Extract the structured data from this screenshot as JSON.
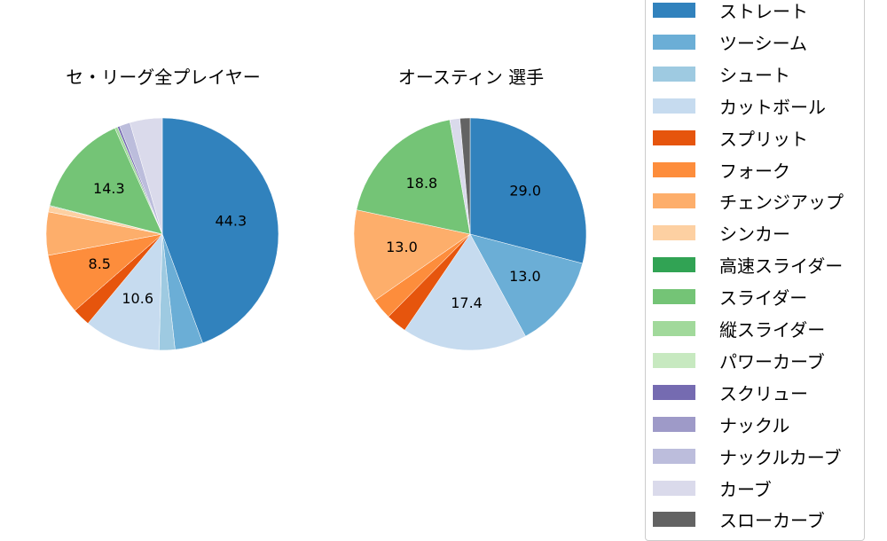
{
  "chart_data": [
    {
      "type": "pie",
      "title": "セ・リーグ全プレイヤー",
      "center": [
        183,
        264
      ],
      "radius": 131,
      "start_angle_deg": 90,
      "direction": "clockwise",
      "slices": [
        {
          "label": "ストレート",
          "value": 44.3,
          "color": "#3182bd",
          "show_label": true
        },
        {
          "label": "ツーシーム",
          "value": 3.9,
          "color": "#6baed6",
          "show_label": false
        },
        {
          "label": "シュート",
          "value": 2.2,
          "color": "#9ecae1",
          "show_label": false
        },
        {
          "label": "カットボール",
          "value": 10.6,
          "color": "#c6dbef",
          "show_label": true
        },
        {
          "label": "スプリット",
          "value": 2.5,
          "color": "#e6550d",
          "show_label": false
        },
        {
          "label": "フォーク",
          "value": 8.5,
          "color": "#fd8d3c",
          "show_label": true
        },
        {
          "label": "チェンジアップ",
          "value": 6.0,
          "color": "#fdae6b",
          "show_label": false
        },
        {
          "label": "シンカー",
          "value": 0.8,
          "color": "#fdd0a2",
          "show_label": false
        },
        {
          "label": "高速スライダー",
          "value": 0.1,
          "color": "#31a354",
          "show_label": false
        },
        {
          "label": "スライダー",
          "value": 14.3,
          "color": "#74c476",
          "show_label": true
        },
        {
          "label": "縦スライダー",
          "value": 0.4,
          "color": "#a1d99b",
          "show_label": false
        },
        {
          "label": "パワーカーブ",
          "value": 0.0,
          "color": "#c7e9c0",
          "show_label": false
        },
        {
          "label": "スクリュー",
          "value": 0.3,
          "color": "#756bb1",
          "show_label": false
        },
        {
          "label": "ナックル",
          "value": 0.0,
          "color": "#9e9ac8",
          "show_label": false
        },
        {
          "label": "ナックルカーブ",
          "value": 1.5,
          "color": "#bcbddc",
          "show_label": false
        },
        {
          "label": "カーブ",
          "value": 4.5,
          "color": "#dadaeb",
          "show_label": false
        },
        {
          "label": "スローカーブ",
          "value": 0.0,
          "color": "#636363",
          "show_label": false
        }
      ]
    },
    {
      "type": "pie",
      "title": "オースティン  選手",
      "center": [
        530,
        264
      ],
      "radius": 131,
      "start_angle_deg": 90,
      "direction": "clockwise",
      "slices": [
        {
          "label": "ストレート",
          "value": 29.0,
          "color": "#3182bd",
          "show_label": true
        },
        {
          "label": "ツーシーム",
          "value": 13.0,
          "color": "#6baed6",
          "show_label": true
        },
        {
          "label": "カットボール",
          "value": 17.4,
          "color": "#c6dbef",
          "show_label": true
        },
        {
          "label": "スプリット",
          "value": 2.9,
          "color": "#e6550d",
          "show_label": false
        },
        {
          "label": "フォーク",
          "value": 2.9,
          "color": "#fd8d3c",
          "show_label": false
        },
        {
          "label": "チェンジアップ",
          "value": 13.0,
          "color": "#fdae6b",
          "show_label": true
        },
        {
          "label": "スライダー",
          "value": 18.8,
          "color": "#74c476",
          "show_label": true
        },
        {
          "label": "カーブ",
          "value": 1.4,
          "color": "#dadaeb",
          "show_label": false
        },
        {
          "label": "スローカーブ",
          "value": 1.4,
          "color": "#636363",
          "show_label": false
        }
      ]
    }
  ],
  "titles": {
    "left": "セ・リーグ全プレイヤー",
    "right": "オースティン  選手"
  },
  "legend": {
    "items": [
      {
        "label": "ストレート",
        "color": "#3182bd"
      },
      {
        "label": "ツーシーム",
        "color": "#6baed6"
      },
      {
        "label": "シュート",
        "color": "#9ecae1"
      },
      {
        "label": "カットボール",
        "color": "#c6dbef"
      },
      {
        "label": "スプリット",
        "color": "#e6550d"
      },
      {
        "label": "フォーク",
        "color": "#fd8d3c"
      },
      {
        "label": "チェンジアップ",
        "color": "#fdae6b"
      },
      {
        "label": "シンカー",
        "color": "#fdd0a2"
      },
      {
        "label": "高速スライダー",
        "color": "#31a354"
      },
      {
        "label": "スライダー",
        "color": "#74c476"
      },
      {
        "label": "縦スライダー",
        "color": "#a1d99b"
      },
      {
        "label": "パワーカーブ",
        "color": "#c7e9c0"
      },
      {
        "label": "スクリュー",
        "color": "#756bb1"
      },
      {
        "label": "ナックル",
        "color": "#9e9ac8"
      },
      {
        "label": "ナックルカーブ",
        "color": "#bcbddc"
      },
      {
        "label": "カーブ",
        "color": "#dadaeb"
      },
      {
        "label": "スローカーブ",
        "color": "#636363"
      }
    ]
  }
}
